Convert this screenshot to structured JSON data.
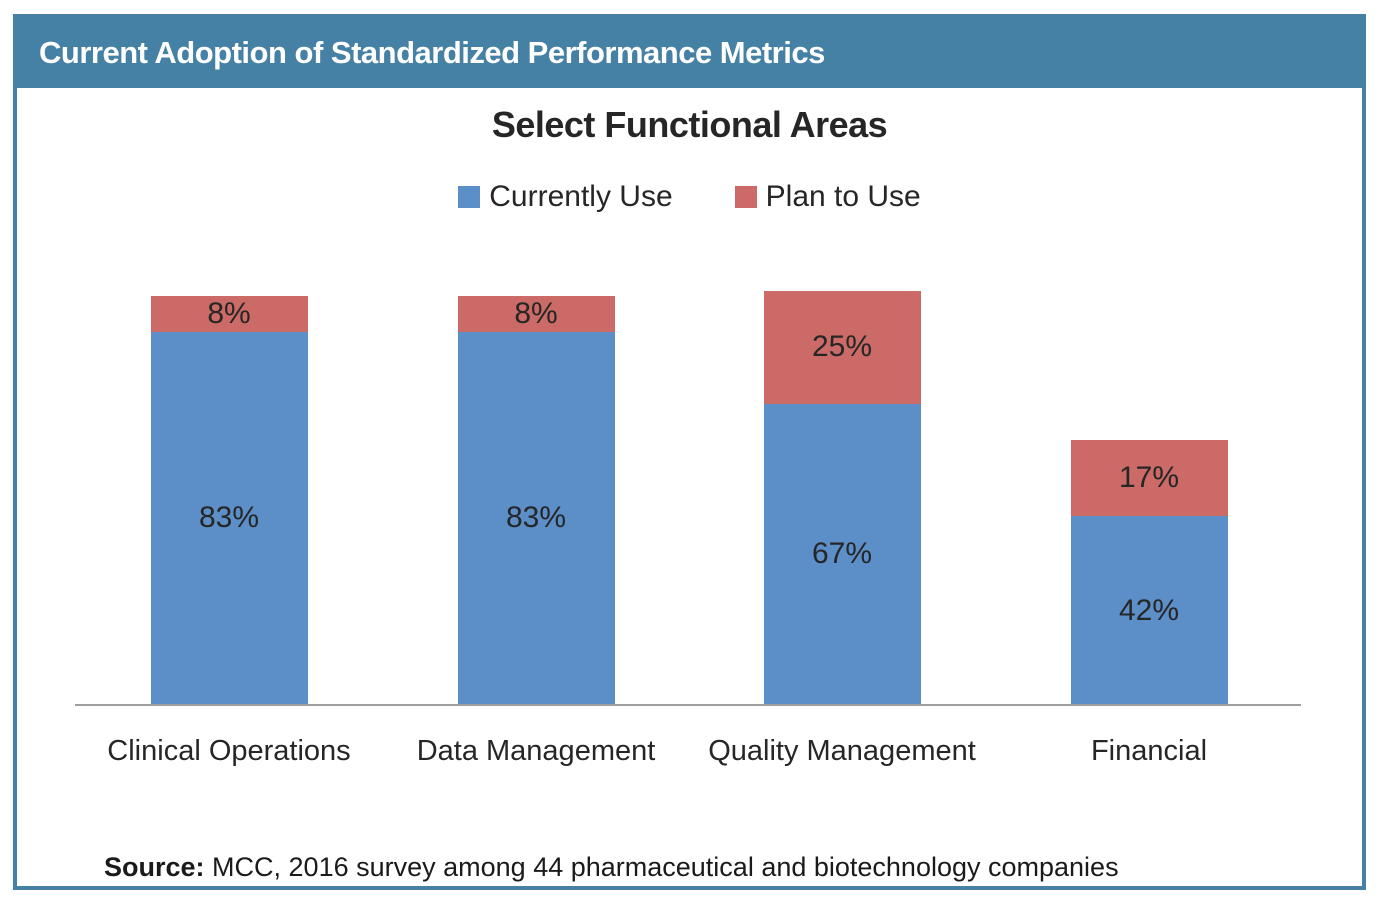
{
  "header": {
    "title": "Current Adoption of Standardized Performance Metrics"
  },
  "chart": {
    "title": "Select Functional Areas"
  },
  "chart_data": {
    "type": "bar",
    "stacked": true,
    "title": "Select Functional Areas",
    "categories": [
      "Clinical Operations",
      "Data Management",
      "Quality Management",
      "Financial"
    ],
    "series": [
      {
        "name": "Currently Use",
        "color": "#5C8EC7",
        "values": [
          83,
          83,
          67,
          42
        ]
      },
      {
        "name": "Plan to Use",
        "color": "#CB6A67",
        "values": [
          8,
          8,
          25,
          17
        ]
      }
    ],
    "value_label_format": "{v}%",
    "ylim": [
      0,
      100
    ],
    "grid": false,
    "legend_position": "top",
    "axis_color": "#9E9E9E"
  },
  "footer": {
    "source_label": "Source:",
    "source_text": " MCC, 2016 survey among 44 pharmaceutical and biotechnology companies"
  },
  "colors": {
    "frame": "#4581A5",
    "header_text": "#FFFFFF",
    "text": "#262626"
  }
}
